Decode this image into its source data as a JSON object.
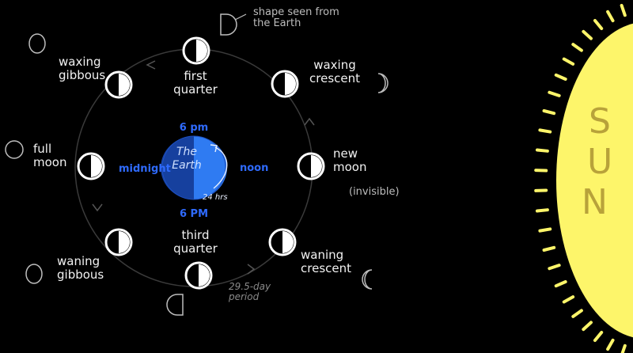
{
  "phases": {
    "first_quarter": [
      "first",
      "quarter"
    ],
    "waxing_crescent": [
      "waxing",
      "crescent"
    ],
    "new_moon": [
      "new",
      "moon"
    ],
    "invisible": "(invisible)",
    "waning_crescent": [
      "waning",
      "crescent"
    ],
    "third_quarter": [
      "third",
      "quarter"
    ],
    "waning_gibbous": [
      "waning",
      "gibbous"
    ],
    "full_moon": [
      "full",
      "moon"
    ],
    "waxing_gibbous": [
      "waxing",
      "gibbous"
    ]
  },
  "earth": {
    "label": [
      "The",
      "Earth"
    ],
    "top_time": "6 pm",
    "bottom_time": "6 PM",
    "left_time": "midnight",
    "right_time": "noon",
    "rotation": "24 hrs"
  },
  "annotations": {
    "shape_note": [
      "shape seen from",
      "the Earth"
    ],
    "period": [
      "29.5-day",
      "period"
    ]
  },
  "sun": {
    "letters": [
      "S",
      "U",
      "N"
    ]
  },
  "colors": {
    "background": "#000000",
    "sun": "#fdf56a",
    "earth_light": "#2f7bf2",
    "earth_dark": "#16409e",
    "time_labels": "#2f6bff"
  }
}
